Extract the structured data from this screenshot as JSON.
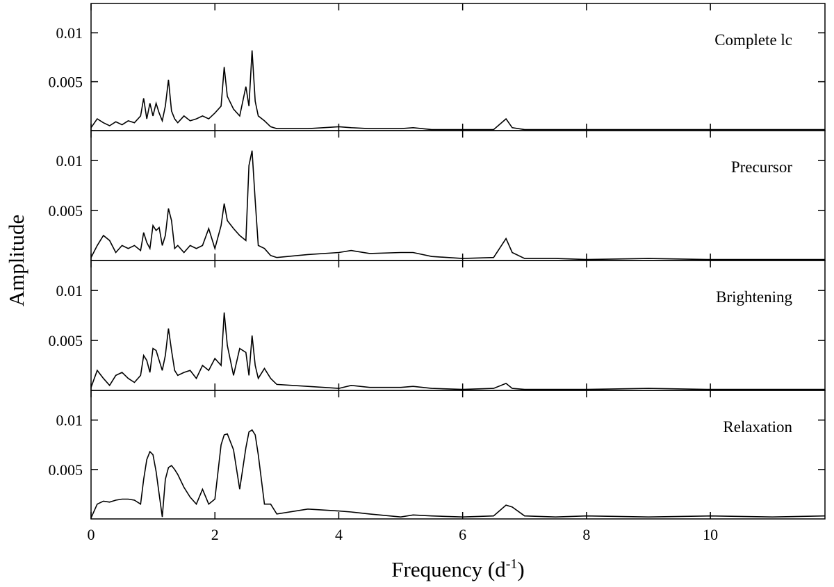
{
  "chart_data": [
    {
      "type": "line",
      "title": "Complete lc",
      "x": [
        0,
        0.1,
        0.2,
        0.3,
        0.4,
        0.5,
        0.6,
        0.7,
        0.8,
        0.85,
        0.9,
        0.95,
        1.0,
        1.05,
        1.1,
        1.15,
        1.2,
        1.25,
        1.3,
        1.35,
        1.4,
        1.5,
        1.6,
        1.7,
        1.8,
        1.9,
        2.0,
        2.1,
        2.15,
        2.2,
        2.3,
        2.4,
        2.5,
        2.55,
        2.6,
        2.65,
        2.7,
        2.8,
        2.9,
        3.0,
        3.5,
        4.0,
        4.2,
        4.5,
        5.0,
        5.2,
        5.5,
        6.0,
        6.5,
        6.7,
        6.8,
        7.0,
        7.5,
        8,
        9,
        10,
        11,
        11.85
      ],
      "series": [
        {
          "color": "#000000",
          "values": [
            0.0003,
            0.0012,
            0.0008,
            0.0005,
            0.0009,
            0.0006,
            0.001,
            0.0008,
            0.0015,
            0.0033,
            0.0012,
            0.0028,
            0.0015,
            0.0028,
            0.0018,
            0.001,
            0.0025,
            0.0052,
            0.002,
            0.0012,
            0.0008,
            0.0015,
            0.001,
            0.0012,
            0.0015,
            0.0012,
            0.0018,
            0.0025,
            0.0065,
            0.0035,
            0.0022,
            0.0015,
            0.0045,
            0.0025,
            0.0082,
            0.003,
            0.0015,
            0.001,
            0.0004,
            0.0002,
            0.0002,
            0.0004,
            0.0003,
            0.0002,
            0.0002,
            0.0003,
            0.0001,
            0.0001,
            0.0001,
            0.0012,
            0.0003,
            0.0001,
            0.0001,
            0.0001,
            0.0001,
            0.0001,
            0.0001,
            0.0001
          ]
        }
      ],
      "xlim": [
        0,
        11.85
      ],
      "xticks": [
        0,
        2,
        4,
        6,
        8,
        10
      ],
      "ylim": [
        0,
        0.013
      ],
      "yticks": [
        0.005,
        0.01
      ]
    },
    {
      "type": "line",
      "title": "Precursor",
      "ylabel": "Amplitude",
      "x": [
        0,
        0.1,
        0.2,
        0.3,
        0.4,
        0.5,
        0.6,
        0.7,
        0.8,
        0.85,
        0.9,
        0.95,
        1.0,
        1.05,
        1.1,
        1.15,
        1.2,
        1.25,
        1.3,
        1.35,
        1.4,
        1.5,
        1.6,
        1.7,
        1.8,
        1.9,
        2.0,
        2.1,
        2.15,
        2.2,
        2.3,
        2.4,
        2.5,
        2.55,
        2.6,
        2.65,
        2.7,
        2.8,
        2.9,
        3.0,
        3.5,
        4.0,
        4.2,
        4.5,
        5.0,
        5.2,
        5.5,
        6.0,
        6.5,
        6.7,
        6.8,
        7.0,
        7.5,
        8,
        9,
        10,
        11,
        11.85
      ],
      "series": [
        {
          "color": "#000000",
          "values": [
            0.0003,
            0.0015,
            0.0025,
            0.002,
            0.0008,
            0.0015,
            0.0012,
            0.0015,
            0.001,
            0.0028,
            0.0018,
            0.0012,
            0.0035,
            0.003,
            0.0033,
            0.0015,
            0.0025,
            0.0052,
            0.004,
            0.0012,
            0.0015,
            0.0008,
            0.0015,
            0.0012,
            0.0015,
            0.0032,
            0.0012,
            0.0035,
            0.0057,
            0.004,
            0.0032,
            0.0025,
            0.002,
            0.0095,
            0.011,
            0.006,
            0.0015,
            0.0012,
            0.0005,
            0.0003,
            0.0006,
            0.0008,
            0.001,
            0.0007,
            0.0008,
            0.0008,
            0.0004,
            0.0002,
            0.0003,
            0.0022,
            0.0008,
            0.0002,
            0.0002,
            0.0001,
            0.0002,
            0.0001,
            0.0001,
            0.0001
          ]
        }
      ],
      "xlim": [
        0,
        11.85
      ],
      "xticks": [
        0,
        2,
        4,
        6,
        8,
        10
      ],
      "ylim": [
        0,
        0.013
      ],
      "yticks": [
        0.005,
        0.01
      ]
    },
    {
      "type": "line",
      "title": "Brightening",
      "x": [
        0,
        0.1,
        0.2,
        0.3,
        0.4,
        0.5,
        0.6,
        0.7,
        0.8,
        0.85,
        0.9,
        0.95,
        1.0,
        1.05,
        1.1,
        1.15,
        1.2,
        1.25,
        1.3,
        1.35,
        1.4,
        1.5,
        1.6,
        1.7,
        1.8,
        1.9,
        2.0,
        2.1,
        2.15,
        2.2,
        2.3,
        2.4,
        2.5,
        2.55,
        2.6,
        2.65,
        2.7,
        2.8,
        2.9,
        3.0,
        3.5,
        4.0,
        4.2,
        4.5,
        5.0,
        5.2,
        5.5,
        6.0,
        6.5,
        6.7,
        6.8,
        7.0,
        7.5,
        8,
        9,
        10,
        11,
        11.85
      ],
      "series": [
        {
          "color": "#000000",
          "values": [
            0.0003,
            0.002,
            0.0012,
            0.0005,
            0.0015,
            0.0018,
            0.0012,
            0.0008,
            0.0015,
            0.0035,
            0.003,
            0.0018,
            0.0042,
            0.004,
            0.003,
            0.002,
            0.0035,
            0.0062,
            0.004,
            0.002,
            0.0015,
            0.0018,
            0.002,
            0.0012,
            0.0025,
            0.002,
            0.0032,
            0.0025,
            0.0078,
            0.0045,
            0.0015,
            0.0042,
            0.0038,
            0.0015,
            0.0055,
            0.0025,
            0.0012,
            0.0022,
            0.0012,
            0.0006,
            0.0004,
            0.0002,
            0.0005,
            0.0003,
            0.0003,
            0.0004,
            0.0002,
            0.0001,
            0.0002,
            0.0007,
            0.0002,
            0.0001,
            0.0001,
            0.0001,
            0.0002,
            0.0001,
            0.0001,
            0.0001
          ]
        }
      ],
      "xlim": [
        0,
        11.85
      ],
      "xticks": [
        0,
        2,
        4,
        6,
        8,
        10
      ],
      "ylim": [
        0,
        0.013
      ],
      "yticks": [
        0.005,
        0.01
      ]
    },
    {
      "type": "line",
      "title": "Relaxation",
      "xlabel": "Frequency (d",
      "xlabel_sup": "-1",
      "xlabel_end": ")",
      "x": [
        0,
        0.1,
        0.2,
        0.3,
        0.4,
        0.5,
        0.6,
        0.7,
        0.8,
        0.85,
        0.9,
        0.95,
        1.0,
        1.05,
        1.1,
        1.15,
        1.2,
        1.25,
        1.3,
        1.35,
        1.4,
        1.5,
        1.6,
        1.7,
        1.8,
        1.9,
        2.0,
        2.1,
        2.15,
        2.2,
        2.3,
        2.4,
        2.5,
        2.55,
        2.6,
        2.65,
        2.7,
        2.8,
        2.9,
        3.0,
        3.5,
        4.0,
        4.2,
        4.5,
        5.0,
        5.2,
        5.5,
        6.0,
        6.5,
        6.7,
        6.8,
        7.0,
        7.5,
        8,
        9,
        10,
        11,
        11.85
      ],
      "series": [
        {
          "color": "#000000",
          "values": [
            0.0001,
            0.0015,
            0.0018,
            0.0017,
            0.0019,
            0.002,
            0.002,
            0.0019,
            0.0015,
            0.004,
            0.006,
            0.0068,
            0.0065,
            0.0048,
            0.0025,
            0.0002,
            0.004,
            0.0052,
            0.0054,
            0.005,
            0.0045,
            0.0032,
            0.0022,
            0.0015,
            0.003,
            0.0015,
            0.002,
            0.0075,
            0.0085,
            0.0086,
            0.007,
            0.003,
            0.0072,
            0.0088,
            0.009,
            0.0085,
            0.0065,
            0.0015,
            0.0015,
            0.0005,
            0.001,
            0.0008,
            0.0007,
            0.0005,
            0.0002,
            0.0004,
            0.0003,
            0.0002,
            0.0003,
            0.0014,
            0.0012,
            0.0003,
            0.0002,
            0.0003,
            0.0002,
            0.0003,
            0.0002,
            0.0003
          ]
        }
      ],
      "xlim": [
        0,
        11.85
      ],
      "xticks": [
        0,
        2,
        4,
        6,
        8,
        10
      ],
      "ylim": [
        0,
        0.013
      ],
      "yticks": [
        0.005,
        0.01
      ]
    }
  ]
}
